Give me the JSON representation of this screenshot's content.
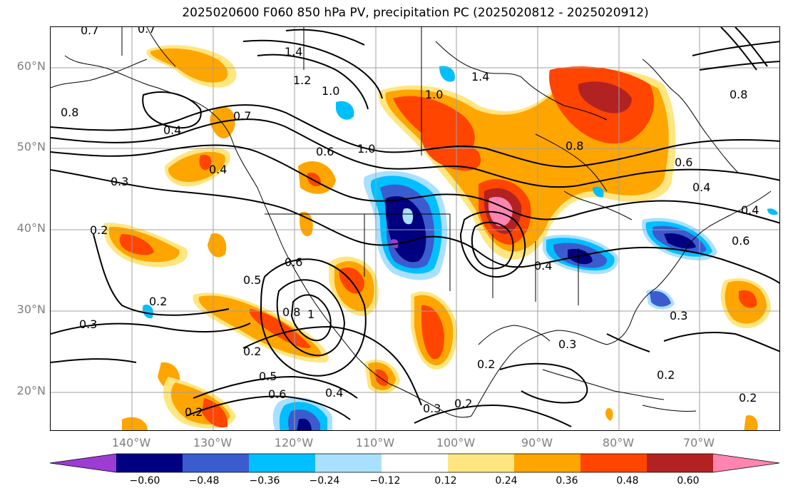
{
  "title": "2025020600 F060 850 hPa PV, precipitation PC (2025020812 - 2025020912)",
  "lat_labels": [
    "60°N",
    "50°N",
    "40°N",
    "30°N",
    "20°N"
  ],
  "lon_labels": [
    "140°W",
    "130°W",
    "120°W",
    "110°W",
    "100°W",
    "90°W",
    "80°W",
    "70°W"
  ],
  "colorbar": {
    "ticks": [
      "−0.60",
      "−0.48",
      "−0.36",
      "−0.24",
      "−0.12",
      "0.12",
      "0.24",
      "0.36",
      "0.48",
      "0.60"
    ],
    "colors": [
      "#9d3bd3",
      "#000080",
      "#3a5ccf",
      "#00bfff",
      "#a9e0ff",
      "#ffffff",
      "#ffe680",
      "#ffa500",
      "#ff4500",
      "#b22222",
      "#ff85b0"
    ]
  },
  "contour_labels": [
    "0.7",
    "0.7",
    "1.4",
    "1.2",
    "1.0",
    "1.4",
    "0.8",
    "0.4",
    "0.7",
    "0.4",
    "0.6",
    "1.0",
    "0.3",
    "0.2",
    "0.2",
    "0.8",
    "1.0",
    "0.8",
    "0.6",
    "0.4",
    "0.4",
    "0.6",
    "0.4",
    "0.5",
    "0.6",
    "0.8",
    "1",
    "0.3",
    "0.3",
    "0.2",
    "0.5",
    "0.6",
    "0.4",
    "0.2",
    "0.2",
    "0.3",
    "0.2",
    "0.2",
    "0.3",
    "0.2"
  ]
}
